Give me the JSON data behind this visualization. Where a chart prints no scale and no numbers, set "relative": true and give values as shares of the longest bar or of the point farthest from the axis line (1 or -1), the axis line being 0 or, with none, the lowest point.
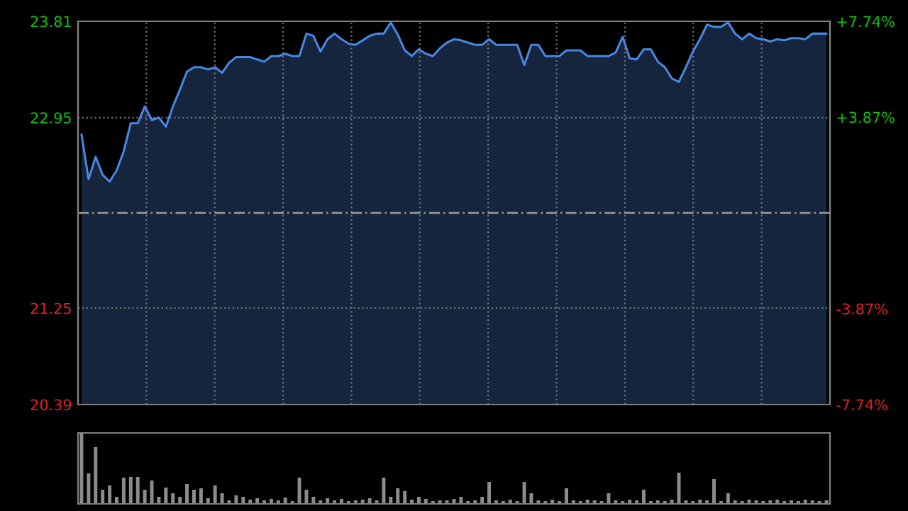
{
  "chart_data": [
    {
      "type": "area",
      "categories": [
        null,
        null,
        null,
        null,
        null,
        null,
        null,
        null,
        null,
        null,
        null,
        null,
        null,
        null,
        null,
        null,
        null,
        null,
        null,
        null,
        null,
        null,
        null,
        null,
        null,
        null,
        null,
        null,
        null,
        null,
        null,
        null,
        null,
        null,
        null,
        null,
        null,
        null,
        null,
        null,
        null,
        null,
        null,
        null,
        null,
        null,
        null,
        null,
        null,
        null,
        null,
        null,
        null,
        null,
        null,
        null,
        null,
        null,
        null,
        null,
        null,
        null,
        null,
        null,
        null,
        null,
        null,
        null,
        null,
        null,
        null,
        null,
        null,
        null,
        null,
        null,
        null,
        null,
        null,
        null,
        null,
        null,
        null,
        null,
        null,
        null,
        null,
        null,
        null,
        null,
        null,
        null,
        null,
        null,
        null,
        null,
        null,
        null,
        null,
        null,
        null,
        null,
        null,
        null,
        null,
        null,
        null
      ],
      "series": [
        {
          "color": "#4a86e0",
          "values": [
            22.8,
            22.4,
            22.6,
            22.44,
            22.38,
            22.48,
            22.65,
            22.9,
            22.9,
            23.05,
            22.93,
            22.95,
            22.87,
            23.05,
            23.2,
            23.36,
            23.4,
            23.4,
            23.38,
            23.4,
            23.35,
            23.44,
            23.49,
            23.49,
            23.49,
            23.47,
            23.45,
            23.5,
            23.5,
            23.52,
            23.5,
            23.5,
            23.7,
            23.68,
            23.54,
            23.65,
            23.7,
            23.65,
            23.61,
            23.6,
            23.64,
            23.68,
            23.7,
            23.7,
            23.8,
            23.69,
            23.55,
            23.5,
            23.56,
            23.52,
            23.5,
            23.57,
            23.62,
            23.65,
            23.64,
            23.62,
            23.6,
            23.6,
            23.65,
            23.6,
            23.6,
            23.6,
            23.6,
            23.42,
            23.6,
            23.6,
            23.5,
            23.5,
            23.5,
            23.55,
            23.55,
            23.55,
            23.5,
            23.5,
            23.5,
            23.5,
            23.53,
            23.67,
            23.48,
            23.47,
            23.56,
            23.56,
            23.45,
            23.4,
            23.3,
            23.27,
            23.4,
            23.54,
            23.65,
            23.78,
            23.76,
            23.76,
            23.8,
            23.7,
            23.65,
            23.7,
            23.66,
            23.65,
            23.63,
            23.65,
            23.64,
            23.66,
            23.66,
            23.65,
            23.7,
            23.7,
            23.7
          ]
        }
      ],
      "ylim": [
        20.39,
        23.81
      ],
      "yticks": [
        20.39,
        21.25,
        22.95,
        23.81
      ],
      "y2lim": [
        -7.74,
        7.74
      ],
      "y2ticks": [
        {
          "value": -7.74,
          "label": "-7.74%"
        },
        {
          "value": -3.87,
          "label": "-3.87%"
        },
        {
          "value": 3.87,
          "label": "+3.87%"
        },
        {
          "value": 7.74,
          "label": "+7.74%"
        }
      ],
      "ref_lines": [
        {
          "axis": "y",
          "value": 22.1,
          "color": "#9a9a9a",
          "line_style": "dashed"
        }
      ],
      "grid": true,
      "tick_labels": "y"
    },
    {
      "type": "bar",
      "relative": true,
      "categories": [
        null,
        null,
        null,
        null,
        null,
        null,
        null,
        null,
        null,
        null,
        null,
        null,
        null,
        null,
        null,
        null,
        null,
        null,
        null,
        null,
        null,
        null,
        null,
        null,
        null,
        null,
        null,
        null,
        null,
        null,
        null,
        null,
        null,
        null,
        null,
        null,
        null,
        null,
        null,
        null,
        null,
        null,
        null,
        null,
        null,
        null,
        null,
        null,
        null,
        null,
        null,
        null,
        null,
        null,
        null,
        null,
        null,
        null,
        null,
        null,
        null,
        null,
        null,
        null,
        null,
        null,
        null,
        null,
        null,
        null,
        null,
        null,
        null,
        null,
        null,
        null,
        null,
        null,
        null,
        null,
        null,
        null,
        null,
        null,
        null,
        null,
        null,
        null,
        null,
        null,
        null,
        null,
        null,
        null,
        null,
        null,
        null,
        null,
        null,
        null,
        null,
        null,
        null,
        null,
        null,
        null,
        null
      ],
      "series": [
        {
          "color": "#8c8c8c",
          "values": [
            1.0,
            0.43,
            0.8,
            0.2,
            0.26,
            0.1,
            0.37,
            0.38,
            0.38,
            0.2,
            0.33,
            0.1,
            0.23,
            0.15,
            0.1,
            0.28,
            0.2,
            0.22,
            0.08,
            0.26,
            0.15,
            0.05,
            0.12,
            0.1,
            0.06,
            0.08,
            0.05,
            0.07,
            0.05,
            0.09,
            0.04,
            0.37,
            0.2,
            0.1,
            0.05,
            0.08,
            0.05,
            0.07,
            0.04,
            0.05,
            0.06,
            0.08,
            0.05,
            0.37,
            0.1,
            0.22,
            0.18,
            0.06,
            0.1,
            0.07,
            0.04,
            0.05,
            0.05,
            0.07,
            0.1,
            0.04,
            0.05,
            0.1,
            0.31,
            0.05,
            0.04,
            0.06,
            0.04,
            0.31,
            0.15,
            0.05,
            0.04,
            0.06,
            0.04,
            0.22,
            0.05,
            0.04,
            0.06,
            0.05,
            0.04,
            0.15,
            0.05,
            0.04,
            0.06,
            0.05,
            0.2,
            0.04,
            0.05,
            0.04,
            0.06,
            0.44,
            0.05,
            0.04,
            0.06,
            0.05,
            0.35,
            0.04,
            0.15,
            0.05,
            0.04,
            0.06,
            0.05,
            0.04,
            0.05,
            0.06,
            0.04,
            0.05,
            0.04,
            0.06,
            0.05,
            0.04,
            0.05
          ]
        }
      ],
      "grid": false,
      "tick_labels": false
    }
  ]
}
